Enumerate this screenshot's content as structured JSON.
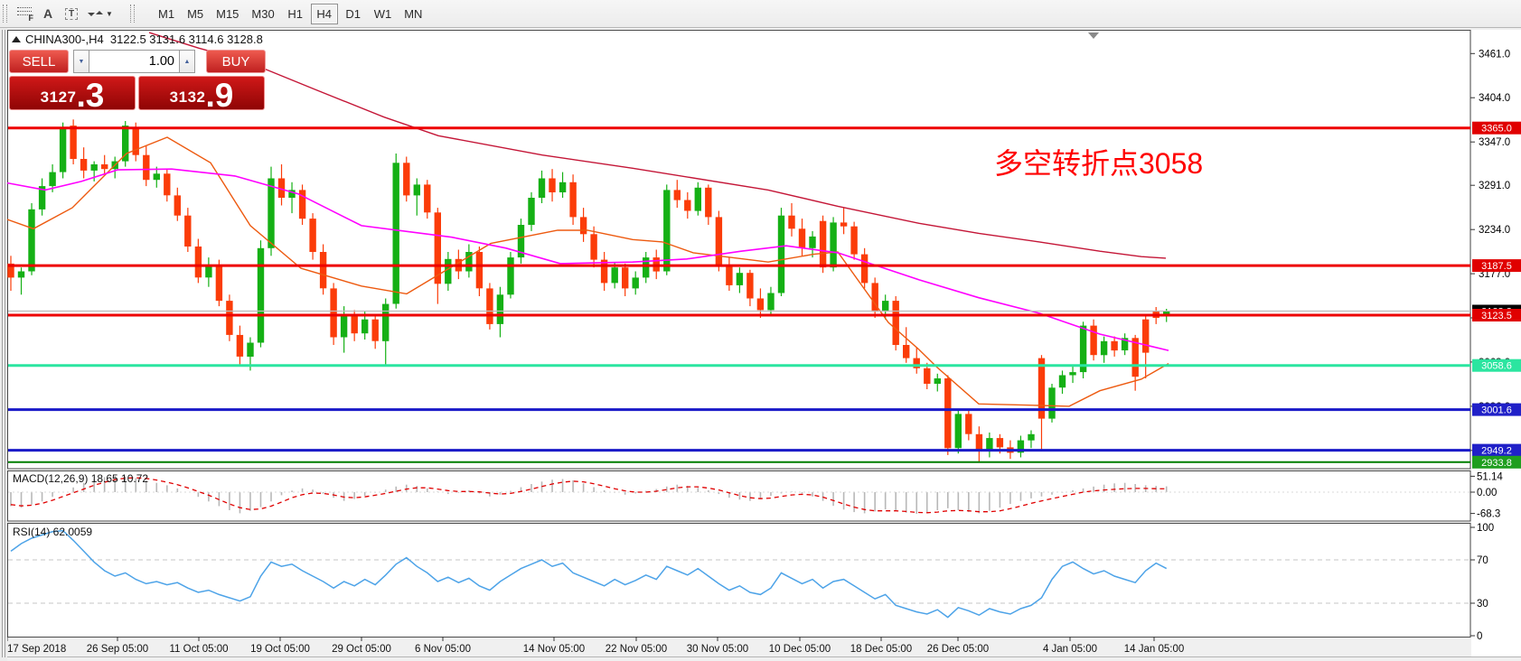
{
  "toolbar": {
    "tools": [
      {
        "name": "fibonacci-retracement-icon",
        "glyph": "F"
      },
      {
        "name": "text-icon",
        "glyph": "A"
      },
      {
        "name": "text-label-icon",
        "glyph": "T"
      },
      {
        "name": "arrows-icon",
        "glyph": ""
      }
    ],
    "timeframes": [
      "M1",
      "M5",
      "M15",
      "M30",
      "H1",
      "H4",
      "D1",
      "W1",
      "MN"
    ],
    "active_timeframe": "H4"
  },
  "chart_header": {
    "symbol_title": "CHINA300-,H4",
    "ohlc_text": "3122.5 3131.6 3114.6 3128.8"
  },
  "one_click": {
    "sell_label": "SELL",
    "buy_label": "BUY",
    "volume": "1.00",
    "sell_price_main": "3127",
    "sell_price_pips": ".3",
    "buy_price_main": "3132",
    "buy_price_pips": ".9"
  },
  "annotation": {
    "text": "多空转折点3058",
    "color": "#FF0000"
  },
  "indicators": {
    "macd_label": "MACD(12,26,9) 18.65 10.72",
    "rsi_label": "RSI(14) 62.0059"
  },
  "axis": {
    "price_ticks": [
      [
        3461,
        "3461.0"
      ],
      [
        3404,
        "3404.0"
      ],
      [
        3347,
        "3347.0"
      ],
      [
        3291,
        "3291.0"
      ],
      [
        3234,
        "3234.0"
      ],
      [
        3177,
        "3177.0"
      ],
      [
        3120,
        "3120.0"
      ],
      [
        3063,
        "3063.0"
      ],
      [
        3006,
        "3006.0"
      ],
      [
        2949,
        "2949.0"
      ]
    ],
    "macd_ticks": [
      [
        51.14,
        "51.14"
      ],
      [
        0,
        "0.00"
      ],
      [
        -68.3,
        "-68.3"
      ]
    ],
    "rsi_ticks": [
      [
        100,
        "100"
      ],
      [
        70,
        "70"
      ],
      [
        30,
        "30"
      ],
      [
        0,
        "0"
      ]
    ],
    "time_labels": [
      [
        8,
        "17 Sep 2018"
      ],
      [
        130,
        "26 Sep 05:00"
      ],
      [
        220,
        "11 Oct 05:00"
      ],
      [
        310,
        "19 Oct 05:00"
      ],
      [
        400,
        "29 Oct 05:00"
      ],
      [
        490,
        "6 Nov 05:00"
      ],
      [
        613,
        "14 Nov 05:00"
      ],
      [
        704,
        "22 Nov 05:00"
      ],
      [
        794,
        "30 Nov 05:00"
      ],
      [
        885,
        "10 Dec 05:00"
      ],
      [
        975,
        "18 Dec 05:00"
      ],
      [
        1060,
        "26 Dec 05:00"
      ],
      [
        1184,
        "4 Jan 05:00"
      ],
      [
        1277,
        "14 Jan 05:00"
      ]
    ]
  },
  "chart_data": {
    "type": "candlestick",
    "symbol": "CHINA300-",
    "timeframe": "H4",
    "current_ohlc": {
      "open": 3122.5,
      "high": 3131.6,
      "low": 3114.6,
      "close": 3128.8
    },
    "colors": {
      "up": "#15B015",
      "down": "#FB3C09",
      "ma_mid": "#FF00FF",
      "ma_fast": "#ED5A10",
      "ma_slow": "#C41637",
      "macd_hist": "#B8B8B8",
      "macd_signal": "#E00000",
      "rsi": "#4DA3E8"
    },
    "candles": [
      [
        3190,
        3200,
        3155,
        3172
      ],
      [
        3172,
        3185,
        3150,
        3180
      ],
      [
        3180,
        3268,
        3175,
        3260
      ],
      [
        3260,
        3300,
        3252,
        3290
      ],
      [
        3290,
        3318,
        3282,
        3308
      ],
      [
        3308,
        3372,
        3300,
        3365
      ],
      [
        3368,
        3376,
        3318,
        3325
      ],
      [
        3325,
        3340,
        3300,
        3310
      ],
      [
        3310,
        3322,
        3296,
        3318
      ],
      [
        3318,
        3330,
        3305,
        3312
      ],
      [
        3312,
        3328,
        3300,
        3322
      ],
      [
        3322,
        3374,
        3315,
        3368
      ],
      [
        3365,
        3372,
        3322,
        3330
      ],
      [
        3330,
        3342,
        3290,
        3298
      ],
      [
        3298,
        3315,
        3288,
        3306
      ],
      [
        3306,
        3312,
        3270,
        3278
      ],
      [
        3278,
        3288,
        3245,
        3252
      ],
      [
        3252,
        3262,
        3205,
        3212
      ],
      [
        3212,
        3222,
        3165,
        3172
      ],
      [
        3172,
        3198,
        3160,
        3188
      ],
      [
        3188,
        3195,
        3135,
        3142
      ],
      [
        3142,
        3150,
        3090,
        3098
      ],
      [
        3098,
        3110,
        3058,
        3070
      ],
      [
        3070,
        3095,
        3052,
        3088
      ],
      [
        3088,
        3220,
        3082,
        3210
      ],
      [
        3210,
        3315,
        3200,
        3300
      ],
      [
        3300,
        3318,
        3265,
        3275
      ],
      [
        3275,
        3295,
        3255,
        3285
      ],
      [
        3285,
        3292,
        3240,
        3248
      ],
      [
        3248,
        3255,
        3195,
        3205
      ],
      [
        3205,
        3215,
        3150,
        3158
      ],
      [
        3158,
        3165,
        3085,
        3095
      ],
      [
        3095,
        3135,
        3075,
        3122
      ],
      [
        3122,
        3130,
        3090,
        3100
      ],
      [
        3100,
        3128,
        3092,
        3118
      ],
      [
        3118,
        3125,
        3080,
        3090
      ],
      [
        3090,
        3145,
        3060,
        3138
      ],
      [
        3138,
        3332,
        3132,
        3320
      ],
      [
        3320,
        3328,
        3270,
        3278
      ],
      [
        3278,
        3300,
        3252,
        3292
      ],
      [
        3292,
        3298,
        3248,
        3256
      ],
      [
        3256,
        3262,
        3138,
        3164
      ],
      [
        3164,
        3205,
        3155,
        3196
      ],
      [
        3196,
        3208,
        3170,
        3180
      ],
      [
        3180,
        3215,
        3172,
        3205
      ],
      [
        3205,
        3212,
        3148,
        3158
      ],
      [
        3158,
        3165,
        3105,
        3112
      ],
      [
        3112,
        3160,
        3095,
        3150
      ],
      [
        3150,
        3205,
        3145,
        3198
      ],
      [
        3198,
        3248,
        3190,
        3240
      ],
      [
        3240,
        3282,
        3232,
        3275
      ],
      [
        3275,
        3310,
        3268,
        3300
      ],
      [
        3300,
        3312,
        3270,
        3282
      ],
      [
        3282,
        3308,
        3275,
        3295
      ],
      [
        3295,
        3305,
        3240,
        3250
      ],
      [
        3250,
        3262,
        3218,
        3228
      ],
      [
        3228,
        3238,
        3185,
        3195
      ],
      [
        3195,
        3205,
        3155,
        3165
      ],
      [
        3165,
        3192,
        3158,
        3185
      ],
      [
        3185,
        3190,
        3148,
        3158
      ],
      [
        3158,
        3180,
        3150,
        3172
      ],
      [
        3172,
        3205,
        3165,
        3198
      ],
      [
        3198,
        3208,
        3170,
        3180
      ],
      [
        3180,
        3292,
        3175,
        3285
      ],
      [
        3285,
        3298,
        3262,
        3272
      ],
      [
        3272,
        3282,
        3248,
        3258
      ],
      [
        3258,
        3295,
        3252,
        3288
      ],
      [
        3288,
        3292,
        3240,
        3250
      ],
      [
        3250,
        3258,
        3180,
        3188
      ],
      [
        3188,
        3198,
        3155,
        3162
      ],
      [
        3162,
        3185,
        3152,
        3178
      ],
      [
        3178,
        3182,
        3135,
        3145
      ],
      [
        3145,
        3158,
        3120,
        3130
      ],
      [
        3130,
        3160,
        3122,
        3152
      ],
      [
        3152,
        3262,
        3148,
        3252
      ],
      [
        3252,
        3268,
        3225,
        3235
      ],
      [
        3235,
        3248,
        3200,
        3210
      ],
      [
        3210,
        3232,
        3198,
        3225
      ],
      [
        3245,
        3252,
        3178,
        3185
      ],
      [
        3185,
        3250,
        3180,
        3243
      ],
      [
        3243,
        3262,
        3228,
        3238
      ],
      [
        3238,
        3244,
        3195,
        3202
      ],
      [
        3202,
        3210,
        3158,
        3165
      ],
      [
        3165,
        3172,
        3120,
        3128
      ],
      [
        3128,
        3150,
        3118,
        3142
      ],
      [
        3142,
        3148,
        3078,
        3085
      ],
      [
        3085,
        3108,
        3062,
        3068
      ],
      [
        3068,
        3082,
        3048,
        3055
      ],
      [
        3055,
        3062,
        3028,
        3035
      ],
      [
        3035,
        3048,
        3025,
        3042
      ],
      [
        3042,
        3046,
        2943,
        2952
      ],
      [
        2952,
        3002,
        2945,
        2996
      ],
      [
        2996,
        3000,
        2962,
        2970
      ],
      [
        2970,
        2980,
        2933,
        2948
      ],
      [
        2948,
        2972,
        2940,
        2965
      ],
      [
        2965,
        2970,
        2945,
        2953
      ],
      [
        2953,
        2962,
        2938,
        2946
      ],
      [
        2946,
        2968,
        2940,
        2962
      ],
      [
        2962,
        2975,
        2952,
        2970
      ],
      [
        3068,
        3072,
        2948,
        2990
      ],
      [
        2990,
        3035,
        2985,
        3030
      ],
      [
        3030,
        3052,
        3022,
        3046
      ],
      [
        3046,
        3058,
        3036,
        3050
      ],
      [
        3050,
        3115,
        3042,
        3110
      ],
      [
        3110,
        3118,
        3065,
        3072
      ],
      [
        3072,
        3096,
        3062,
        3090
      ],
      [
        3090,
        3096,
        3070,
        3078
      ],
      [
        3078,
        3100,
        3072,
        3094
      ],
      [
        3094,
        3098,
        3026,
        3044
      ],
      [
        3118,
        3124,
        3042,
        3075
      ],
      [
        3128,
        3134,
        3112,
        3120
      ],
      [
        3122.5,
        3131.6,
        3114.6,
        3128.8
      ]
    ],
    "hlines": [
      {
        "price": 3365.0,
        "label": "3365.0",
        "color": "#EE0000",
        "width": 3,
        "badge_bg": "#E00000"
      },
      {
        "price": 3187.5,
        "label": "3187.5",
        "color": "#EE0000",
        "width": 3,
        "badge_bg": "#E00000"
      },
      {
        "price": 3123.5,
        "label": "3123.5",
        "color": "#EE0000",
        "width": 3,
        "badge_bg": "#E00000"
      },
      {
        "price": 3058.6,
        "label": "3058.6",
        "color": "#2BE5A0",
        "width": 3,
        "badge_bg": "#2BE5A0"
      },
      {
        "price": 3001.6,
        "label": "3001.6",
        "color": "#1A1AC8",
        "width": 3,
        "badge_bg": "#2020C8"
      },
      {
        "price": 2949.2,
        "label": "2949.2",
        "color": "#1A1AC8",
        "width": 3,
        "badge_bg": "#2020C8"
      },
      {
        "price": 2933.8,
        "label": "2933.8",
        "color": "#007F00",
        "width": 2,
        "badge_bg": "#1F9E1F"
      }
    ],
    "bid": {
      "price": 3128.8,
      "label": "3128.8",
      "line_color": "#BBBBBB",
      "badge_bg": "#000000"
    },
    "ma_magenta": [
      [
        8,
        3294
      ],
      [
        50,
        3285
      ],
      [
        90,
        3296
      ],
      [
        130,
        3311
      ],
      [
        190,
        3312
      ],
      [
        260,
        3303
      ],
      [
        330,
        3280
      ],
      [
        400,
        3239
      ],
      [
        500,
        3224
      ],
      [
        560,
        3210
      ],
      [
        620,
        3190
      ],
      [
        700,
        3192
      ],
      [
        760,
        3196
      ],
      [
        820,
        3206
      ],
      [
        870,
        3213
      ],
      [
        927,
        3204
      ],
      [
        1017,
        3169
      ],
      [
        1083,
        3146
      ],
      [
        1150,
        3126
      ],
      [
        1217,
        3099
      ],
      [
        1293,
        3078
      ]
    ],
    "ma_orange": [
      [
        8,
        3247
      ],
      [
        37,
        3235
      ],
      [
        80,
        3262
      ],
      [
        140,
        3332
      ],
      [
        185,
        3353
      ],
      [
        233,
        3320
      ],
      [
        277,
        3239
      ],
      [
        333,
        3184
      ],
      [
        400,
        3161
      ],
      [
        450,
        3151
      ],
      [
        500,
        3186
      ],
      [
        543,
        3216
      ],
      [
        617,
        3233
      ],
      [
        650,
        3233
      ],
      [
        700,
        3221
      ],
      [
        733,
        3218
      ],
      [
        767,
        3204
      ],
      [
        850,
        3192
      ],
      [
        900,
        3202
      ],
      [
        927,
        3205
      ],
      [
        983,
        3114
      ],
      [
        1017,
        3079
      ],
      [
        1037,
        3056
      ],
      [
        1083,
        3009
      ],
      [
        1150,
        3007
      ],
      [
        1183,
        3006
      ],
      [
        1217,
        3026
      ],
      [
        1263,
        3041
      ],
      [
        1293,
        3061
      ]
    ],
    "ma_crimson": [
      [
        165,
        3488
      ],
      [
        220,
        3468
      ],
      [
        270,
        3452
      ],
      [
        350,
        3414
      ],
      [
        425,
        3379
      ],
      [
        485,
        3355
      ],
      [
        600,
        3330
      ],
      [
        700,
        3313
      ],
      [
        850,
        3285
      ],
      [
        927,
        3264
      ],
      [
        1017,
        3242
      ],
      [
        1083,
        3229
      ],
      [
        1150,
        3218
      ],
      [
        1217,
        3206
      ],
      [
        1263,
        3199
      ],
      [
        1290,
        3197
      ]
    ],
    "macd": {
      "histogram": [
        -45,
        -50,
        -40,
        -30,
        -15,
        0,
        15,
        30,
        40,
        48,
        52,
        50,
        45,
        38,
        30,
        22,
        12,
        0,
        -15,
        -30,
        -45,
        -58,
        -68,
        -60,
        -48,
        -30,
        -10,
        5,
        12,
        8,
        -5,
        -18,
        -28,
        -22,
        -12,
        -2,
        8,
        18,
        24,
        20,
        12,
        2,
        -6,
        -2,
        6,
        -4,
        -14,
        -8,
        4,
        16,
        26,
        34,
        40,
        42,
        38,
        28,
        16,
        6,
        -2,
        -8,
        -4,
        4,
        10,
        18,
        24,
        20,
        14,
        6,
        -6,
        -18,
        -24,
        -28,
        -22,
        -12,
        -4,
        2,
        -4,
        -14,
        -28,
        -44,
        -56,
        -64,
        -68,
        -62,
        -55,
        -60,
        -66,
        -70,
        -65,
        -58,
        -52,
        -58,
        -64,
        -68,
        -60,
        -50,
        -38,
        -28,
        -20,
        -14,
        -8,
        -2,
        6,
        12,
        18,
        24,
        28,
        30,
        26,
        22,
        20,
        18.65
      ],
      "signal": [
        -40,
        -44,
        -42,
        -36,
        -26,
        -14,
        -2,
        10,
        22,
        32,
        40,
        45,
        46,
        44,
        39,
        32,
        24,
        14,
        2,
        -10,
        -24,
        -38,
        -50,
        -56,
        -54,
        -45,
        -32,
        -18,
        -8,
        -3,
        -4,
        -9,
        -16,
        -18,
        -15,
        -10,
        -4,
        3,
        10,
        14,
        14,
        10,
        5,
        2,
        2,
        1,
        -3,
        -6,
        -4,
        2,
        10,
        18,
        26,
        32,
        35,
        33,
        27,
        19,
        11,
        4,
        0,
        0,
        3,
        8,
        14,
        17,
        17,
        13,
        7,
        -2,
        -11,
        -18,
        -21,
        -19,
        -14,
        -9,
        -7,
        -9,
        -16,
        -27,
        -38,
        -48,
        -56,
        -60,
        -60,
        -60,
        -62,
        -65,
        -66,
        -64,
        -60,
        -59,
        -60,
        -63,
        -63,
        -60,
        -53,
        -45,
        -36,
        -28,
        -21,
        -14,
        -7,
        0,
        4,
        7,
        9,
        11,
        12,
        12,
        11,
        10.72
      ]
    },
    "rsi": {
      "levels": [
        70,
        30
      ],
      "values": [
        78,
        85,
        90,
        93,
        96,
        97,
        88,
        78,
        68,
        60,
        55,
        58,
        52,
        48,
        50,
        47,
        49,
        44,
        40,
        42,
        38,
        35,
        32,
        36,
        55,
        68,
        64,
        66,
        60,
        55,
        50,
        44,
        50,
        46,
        52,
        47,
        56,
        66,
        72,
        64,
        58,
        50,
        54,
        49,
        53,
        46,
        42,
        50,
        56,
        62,
        66,
        70,
        64,
        67,
        58,
        54,
        50,
        46,
        52,
        47,
        51,
        56,
        52,
        64,
        60,
        56,
        62,
        55,
        48,
        42,
        46,
        40,
        38,
        44,
        58,
        53,
        48,
        52,
        44,
        50,
        52,
        46,
        40,
        34,
        38,
        28,
        25,
        22,
        20,
        24,
        17,
        26,
        23,
        19,
        25,
        22,
        20,
        25,
        28,
        35,
        52,
        64,
        68,
        62,
        57,
        60,
        55,
        52,
        49,
        60,
        67,
        62
      ]
    }
  }
}
